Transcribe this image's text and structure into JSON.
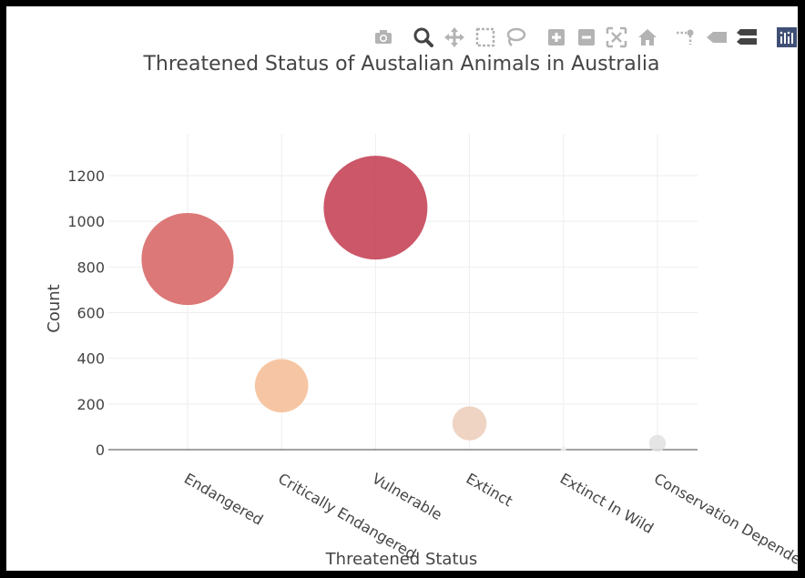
{
  "modebar": {
    "buttons": [
      {
        "name": "camera-icon"
      },
      {
        "name": "zoom-icon"
      },
      {
        "name": "pan-icon"
      },
      {
        "name": "box-select-icon"
      },
      {
        "name": "lasso-select-icon"
      },
      {
        "name": "zoom-in-icon"
      },
      {
        "name": "zoom-out-icon"
      },
      {
        "name": "autoscale-icon"
      },
      {
        "name": "reset-axes-icon"
      },
      {
        "name": "spike-lines-icon"
      },
      {
        "name": "hover-closest-icon"
      },
      {
        "name": "hover-compare-icon"
      },
      {
        "name": "plotly-logo-icon"
      }
    ]
  },
  "chart_data": {
    "type": "scatter",
    "title": "Threatened Status of Austalian Animals in Australia",
    "xlabel": "Threatened Status",
    "ylabel": "Count",
    "categories": [
      "Endangered",
      "Critically Endangered",
      "Vulnerable",
      "Extinct",
      "Extinct In Wild",
      "Conservation Dependent"
    ],
    "tick_labels": [
      "Endangered",
      "Critically Endangered",
      "Vulnerable",
      "Extinct",
      "Extinct In Wild",
      "Conservation Dependent"
    ],
    "values": [
      835,
      280,
      1060,
      115,
      3,
      28
    ],
    "marker_colors": [
      "#d6605f",
      "#f5bc94",
      "#c23a4f",
      "#ecccb8",
      "#eeeeee",
      "#e0e0e0"
    ],
    "marker_opacity": 0.85,
    "yticks": [
      0,
      200,
      400,
      600,
      800,
      1000,
      1200
    ],
    "ylim": [
      -60,
      1380
    ],
    "grid": true,
    "legend": false
  }
}
